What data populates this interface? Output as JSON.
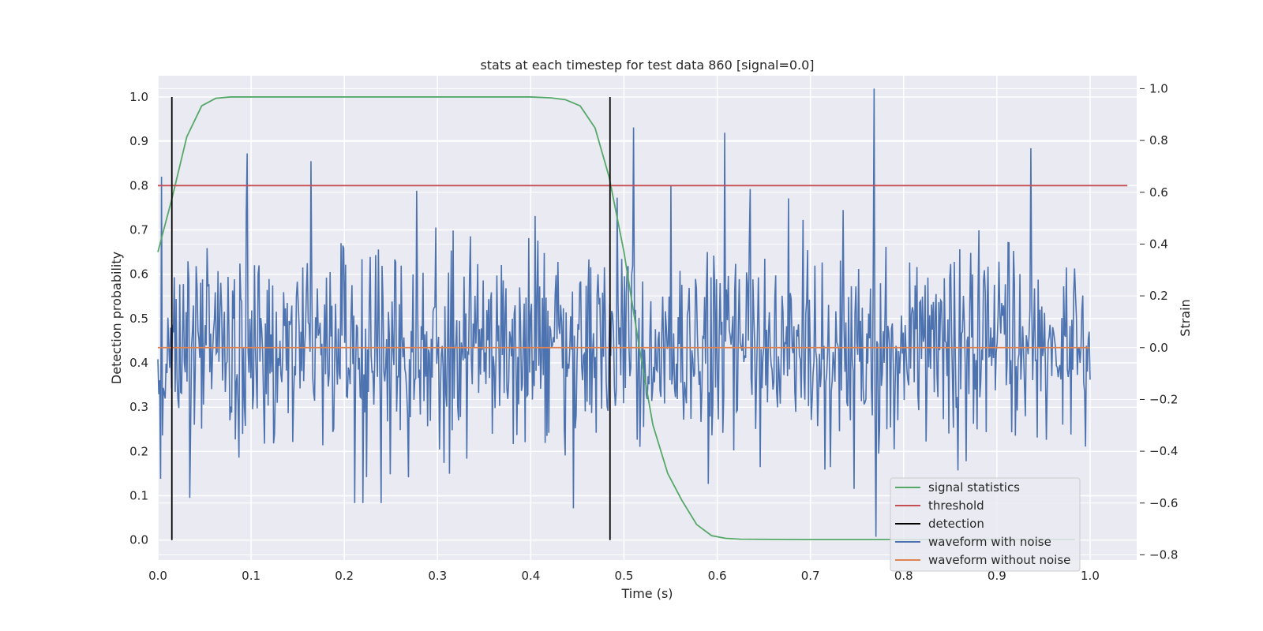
{
  "chart_data": {
    "type": "line",
    "title": "stats at each timestep for test data 860 [signal=0.0]",
    "xlabel": "Time (s)",
    "ylabel": "Detection probability",
    "y2label": "Strain",
    "xlim": [
      0.0,
      1.05
    ],
    "ylim": [
      -0.045,
      1.048
    ],
    "y2lim": [
      -0.82,
      1.05
    ],
    "xticks": [
      "0.0",
      "0.1",
      "0.2",
      "0.3",
      "0.4",
      "0.5",
      "0.6",
      "0.7",
      "0.8",
      "0.9",
      "1.0"
    ],
    "yticks": [
      "0.0",
      "0.1",
      "0.2",
      "0.3",
      "0.4",
      "0.5",
      "0.6",
      "0.7",
      "0.8",
      "0.9",
      "1.0"
    ],
    "y2ticks": [
      "-0.8",
      "-0.6",
      "-0.4",
      "-0.2",
      "0.0",
      "0.2",
      "0.4",
      "0.6",
      "0.8",
      "1.0"
    ],
    "grid": true,
    "legend_position": "lower-right",
    "legend": [
      {
        "label": "signal statistics",
        "color": "#55a868"
      },
      {
        "label": "threshold",
        "color": "#c44e52"
      },
      {
        "label": "detection",
        "color": "#000000"
      },
      {
        "label": "waveform with noise",
        "color": "#4c72b0"
      },
      {
        "label": "waveform without noise",
        "color": "#dd8452"
      }
    ],
    "series": [
      {
        "name": "signal statistics",
        "axis": "left",
        "color": "#55a868",
        "x": [
          0.0,
          0.015,
          0.031,
          0.047,
          0.062,
          0.078,
          0.094,
          0.2,
          0.3,
          0.4,
          0.422,
          0.437,
          0.453,
          0.469,
          0.484,
          0.5,
          0.516,
          0.531,
          0.547,
          0.562,
          0.578,
          0.594,
          0.609,
          0.625,
          0.7,
          0.8,
          0.9,
          0.984
        ],
        "y": [
          0.65,
          0.77,
          0.91,
          0.98,
          0.997,
          1.0,
          1.0,
          1.0,
          1.0,
          1.0,
          0.998,
          0.994,
          0.98,
          0.93,
          0.82,
          0.65,
          0.44,
          0.26,
          0.15,
          0.09,
          0.035,
          0.01,
          0.004,
          0.002,
          0.001,
          0.001,
          0.001,
          0.001
        ]
      },
      {
        "name": "threshold",
        "axis": "left",
        "color": "#c44e52",
        "x": [
          0.0,
          1.04
        ],
        "y": [
          0.8,
          0.8
        ]
      },
      {
        "name": "waveform without noise",
        "axis": "right",
        "color": "#dd8452",
        "x": [
          0.0,
          1.0
        ],
        "y": [
          0.0,
          0.0
        ]
      }
    ],
    "detections": [
      0.015,
      0.485
    ],
    "detection_range": [
      0.0,
      1.0
    ],
    "noise": {
      "name": "waveform with noise",
      "color": "#4c72b0",
      "axis": "right",
      "x_start": 0.0,
      "x_end": 1.0,
      "samples": 1024,
      "std": 0.2,
      "seed": 860,
      "spikes": [
        [
          0.096,
          0.75
        ],
        [
          0.164,
          0.72
        ],
        [
          0.51,
          0.85
        ],
        [
          0.608,
          0.83
        ],
        [
          0.768,
          1.0
        ],
        [
          0.936,
          0.77
        ],
        [
          0.77,
          -0.73
        ],
        [
          0.034,
          -0.58
        ],
        [
          0.446,
          -0.62
        ]
      ]
    }
  }
}
